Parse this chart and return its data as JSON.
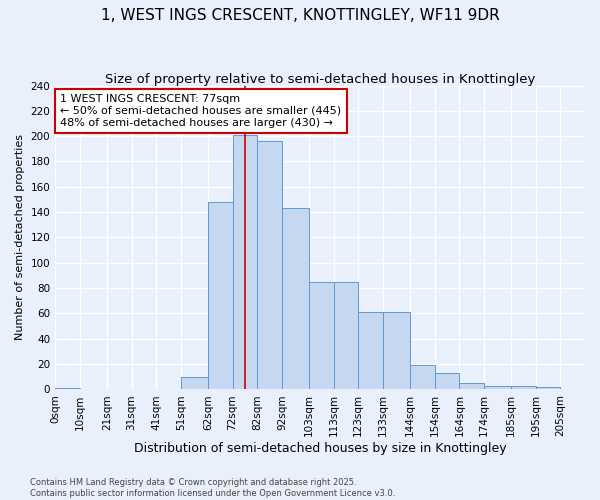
{
  "title": "1, WEST INGS CRESCENT, KNOTTINGLEY, WF11 9DR",
  "subtitle": "Size of property relative to semi-detached houses in Knottingley",
  "xlabel": "Distribution of semi-detached houses by size in Knottingley",
  "ylabel": "Number of semi-detached properties",
  "categories": [
    "0sqm",
    "10sqm",
    "21sqm",
    "31sqm",
    "41sqm",
    "51sqm",
    "62sqm",
    "72sqm",
    "82sqm",
    "92sqm",
    "103sqm",
    "113sqm",
    "123sqm",
    "133sqm",
    "144sqm",
    "154sqm",
    "164sqm",
    "174sqm",
    "185sqm",
    "195sqm",
    "205sqm"
  ],
  "values": [
    1,
    0,
    0,
    0,
    0,
    10,
    148,
    201,
    196,
    143,
    85,
    85,
    61,
    61,
    19,
    13,
    5,
    3,
    3,
    2,
    0
  ],
  "bar_color": "#c5d8f0",
  "bar_edge_color": "#5b9bd5",
  "background_color": "#eaf0fb",
  "grid_color": "#ffffff",
  "vline_x": 77,
  "vline_color": "#cc0000",
  "annotation_text": "1 WEST INGS CRESCENT: 77sqm\n← 50% of semi-detached houses are smaller (445)\n48% of semi-detached houses are larger (430) →",
  "annotation_box_color": "#ffffff",
  "annotation_edge_color": "#cc0000",
  "ylim": [
    0,
    240
  ],
  "yticks": [
    0,
    20,
    40,
    60,
    80,
    100,
    120,
    140,
    160,
    180,
    200,
    220,
    240
  ],
  "bin_starts": [
    0,
    10,
    21,
    31,
    41,
    51,
    62,
    72,
    82,
    92,
    103,
    113,
    123,
    133,
    144,
    154,
    164,
    174,
    185,
    195,
    205
  ],
  "footer": "Contains HM Land Registry data © Crown copyright and database right 2025.\nContains public sector information licensed under the Open Government Licence v3.0.",
  "title_fontsize": 11,
  "subtitle_fontsize": 9.5,
  "xlabel_fontsize": 9,
  "ylabel_fontsize": 8,
  "tick_fontsize": 7.5,
  "annotation_fontsize": 8,
  "footer_fontsize": 6
}
